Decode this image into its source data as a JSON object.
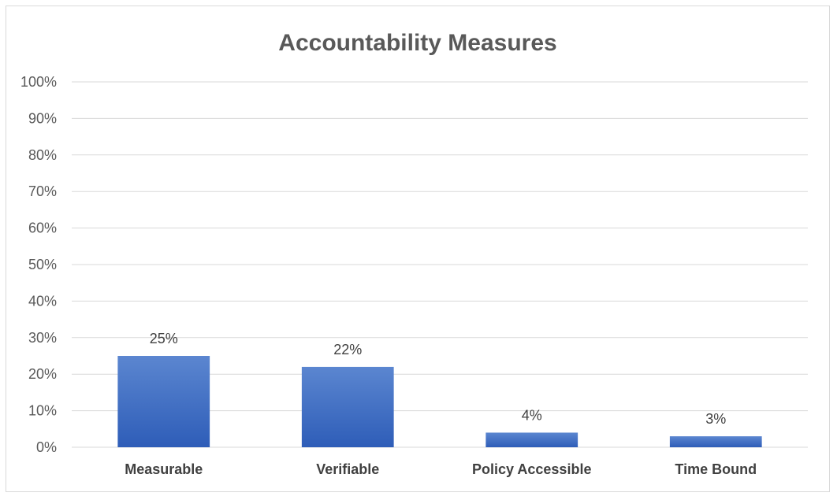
{
  "chart_data": {
    "type": "bar",
    "title": "Accountability Measures",
    "categories": [
      "Measurable",
      "Verifiable",
      "Policy Accessible",
      "Time Bound"
    ],
    "values": [
      25,
      22,
      4,
      3
    ],
    "data_labels": [
      "25%",
      "22%",
      "4%",
      "3%"
    ],
    "ylim": [
      0,
      100
    ],
    "yticks": [
      0,
      10,
      20,
      30,
      40,
      50,
      60,
      70,
      80,
      90,
      100
    ],
    "ytick_labels": [
      "0%",
      "10%",
      "20%",
      "30%",
      "40%",
      "50%",
      "60%",
      "70%",
      "80%",
      "90%",
      "100%"
    ],
    "grid": true,
    "legend": "none",
    "bar_color_top": "#5b86d0",
    "bar_color_bottom": "#2e5db8",
    "grid_color": "#d9d9d9"
  }
}
